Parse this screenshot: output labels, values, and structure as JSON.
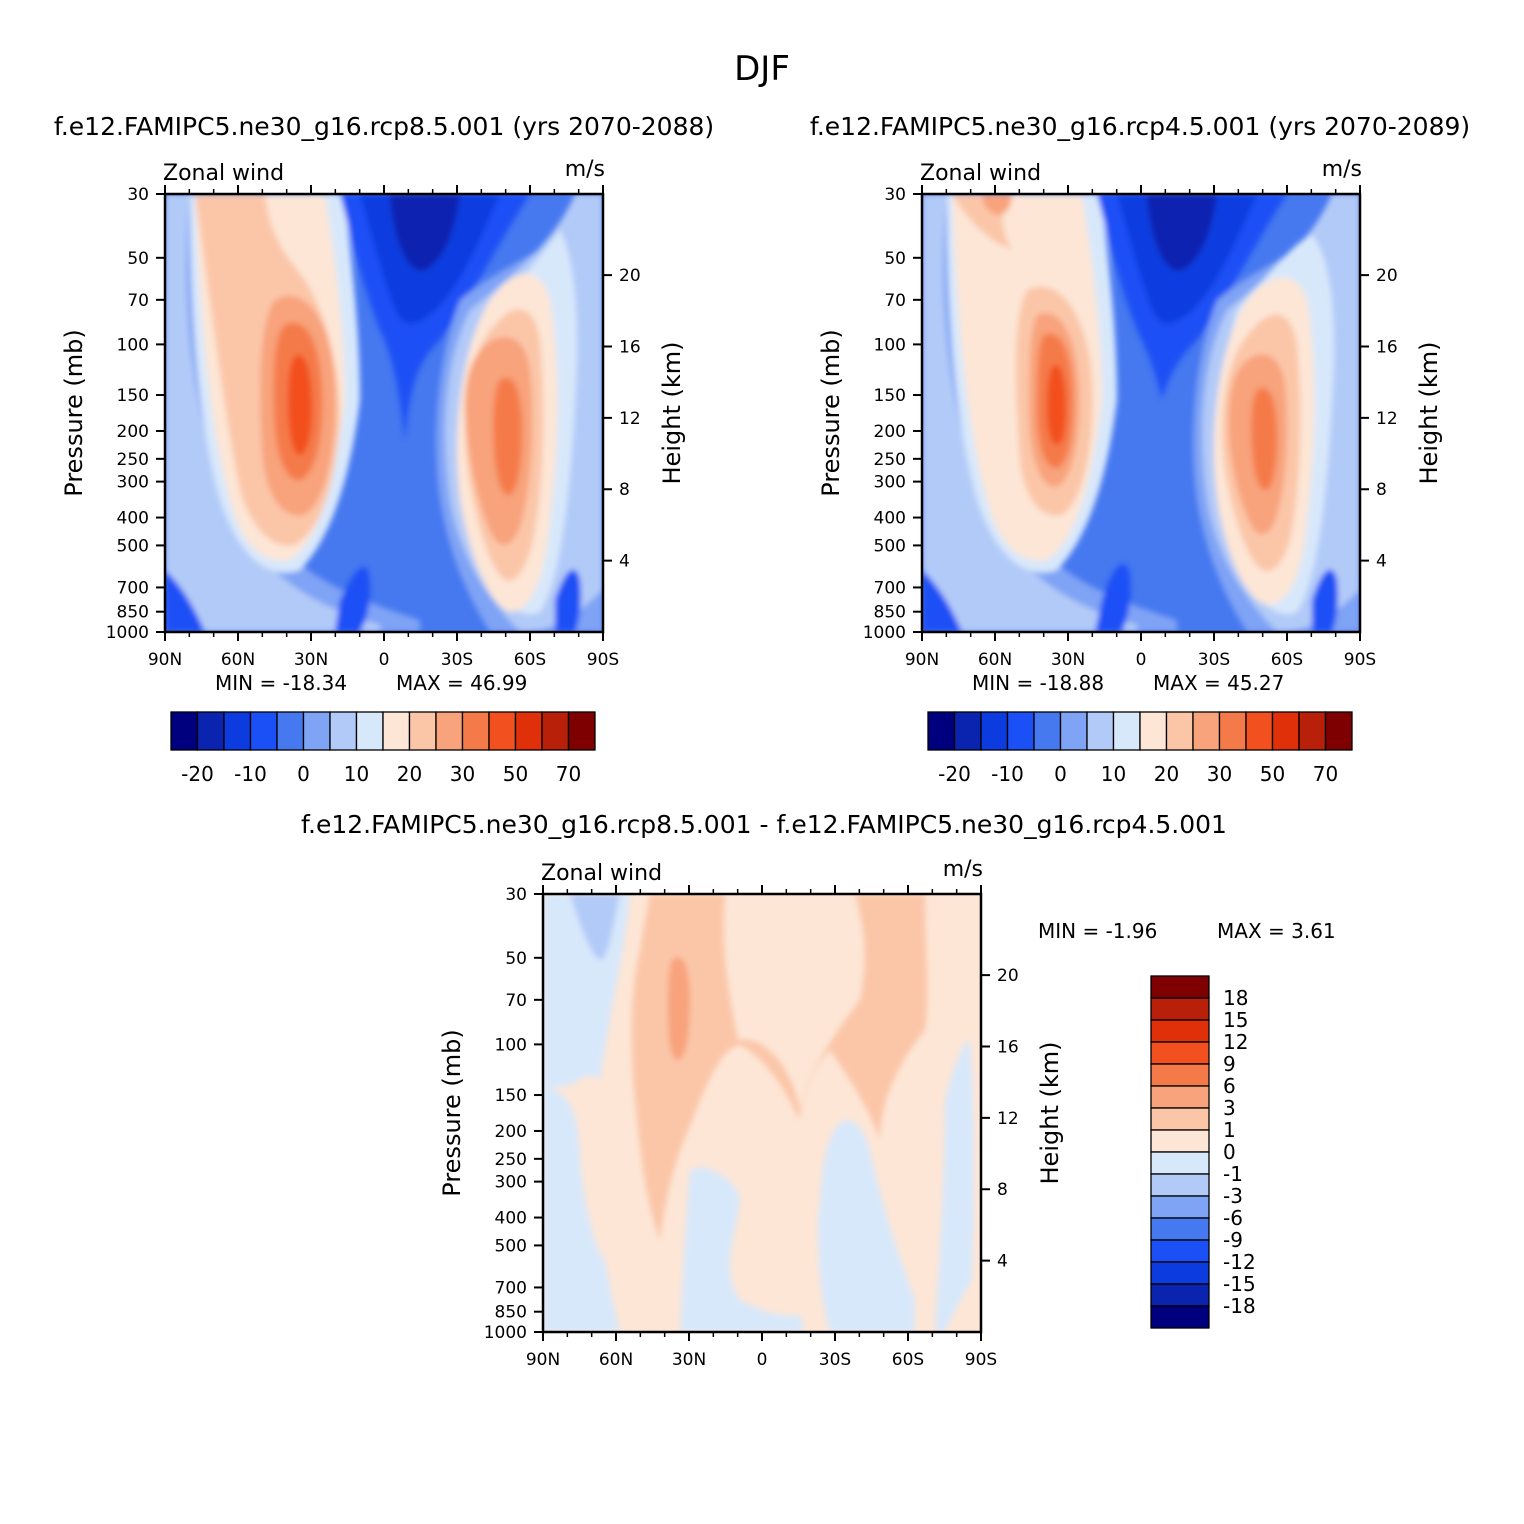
{
  "figure": {
    "title": "DJF"
  },
  "colors": {
    "main_scale": [
      "#00007f",
      "#0a24b0",
      "#0c3ce0",
      "#1a50f5",
      "#4678f0",
      "#7fa3f5",
      "#b2caf8",
      "#d8e8fb",
      "#fde6d6",
      "#fbc6a8",
      "#f8a37c",
      "#f57a4a",
      "#f2501f",
      "#e0300a",
      "#b8200a",
      "#7f0000"
    ],
    "diff_scale": [
      "#00007f",
      "#0a24b0",
      "#0c3ce0",
      "#1a50f5",
      "#4678f0",
      "#7fa3f5",
      "#b2caf8",
      "#d8e8fb",
      "#fde6d6",
      "#fbc6a8",
      "#f8a37c",
      "#f57a4a",
      "#f2501f",
      "#e0300a",
      "#b8200a",
      "#7f0000"
    ]
  },
  "chart_data": [
    {
      "type": "heatmap",
      "title": "f.e12.FAMIPC5.ne30_g16.rcp8.5.001 (yrs 2070-2088)",
      "left_label": "Zonal wind",
      "right_label": "m/s",
      "ylabel": "Pressure (mb)",
      "ylabel_right": "Height (km)",
      "x_ticks": [
        "90N",
        "60N",
        "30N",
        "0",
        "30S",
        "60S",
        "90S"
      ],
      "y_ticks": [
        "30",
        "50",
        "70",
        "100",
        "150",
        "200",
        "250",
        "300",
        "400",
        "500",
        "700",
        "850",
        "1000"
      ],
      "y_right_ticks": [
        "20",
        "16",
        "12",
        "8",
        "4"
      ],
      "ylim": [
        1000,
        30
      ],
      "log_y": true,
      "min_text": "MIN = -18.34",
      "max_text": "MAX =  46.99",
      "colorbar_labels": [
        "-20",
        "-10",
        "0",
        "10",
        "20",
        "30",
        "50",
        "70"
      ],
      "jets": [
        {
          "lat": 30,
          "pressure": 175,
          "max": 46.99
        },
        {
          "lat": -50,
          "pressure": 210,
          "max": 37
        }
      ],
      "easterly_min": {
        "lat": -15,
        "pressure": 30,
        "value": -18.34
      }
    },
    {
      "type": "heatmap",
      "title": "f.e12.FAMIPC5.ne30_g16.rcp4.5.001 (yrs 2070-2089)",
      "left_label": "Zonal wind",
      "right_label": "m/s",
      "ylabel": "Pressure (mb)",
      "ylabel_right": "Height (km)",
      "x_ticks": [
        "90N",
        "60N",
        "30N",
        "0",
        "30S",
        "60S",
        "90S"
      ],
      "y_ticks": [
        "30",
        "50",
        "70",
        "100",
        "150",
        "200",
        "250",
        "300",
        "400",
        "500",
        "700",
        "850",
        "1000"
      ],
      "y_right_ticks": [
        "20",
        "16",
        "12",
        "8",
        "4"
      ],
      "ylim": [
        1000,
        30
      ],
      "log_y": true,
      "min_text": "MIN = -18.88",
      "max_text": "MAX =  45.27",
      "colorbar_labels": [
        "-20",
        "-10",
        "0",
        "10",
        "20",
        "30",
        "50",
        "70"
      ],
      "jets": [
        {
          "lat": 30,
          "pressure": 175,
          "max": 45.27
        },
        {
          "lat": -50,
          "pressure": 210,
          "max": 36
        }
      ],
      "easterly_min": {
        "lat": -15,
        "pressure": 30,
        "value": -18.88
      }
    },
    {
      "type": "heatmap",
      "title": "f.e12.FAMIPC5.ne30_g16.rcp8.5.001 - f.e12.FAMIPC5.ne30_g16.rcp4.5.001",
      "left_label": "Zonal wind",
      "right_label": "m/s",
      "ylabel": "Pressure (mb)",
      "ylabel_right": "Height (km)",
      "x_ticks": [
        "90N",
        "60N",
        "30N",
        "0",
        "30S",
        "60S",
        "90S"
      ],
      "y_ticks": [
        "30",
        "50",
        "70",
        "100",
        "150",
        "200",
        "250",
        "300",
        "400",
        "500",
        "700",
        "850",
        "1000"
      ],
      "y_right_ticks": [
        "20",
        "16",
        "12",
        "8",
        "4"
      ],
      "ylim": [
        1000,
        30
      ],
      "log_y": true,
      "min_text": "MIN =   -1.96",
      "max_text": "MAX =    3.61",
      "colorbar_labels": [
        "18",
        "15",
        "12",
        "9",
        "6",
        "3",
        "1",
        "0",
        "-1",
        "-3",
        "-6",
        "-9",
        "-12",
        "-15",
        "-18"
      ]
    }
  ]
}
